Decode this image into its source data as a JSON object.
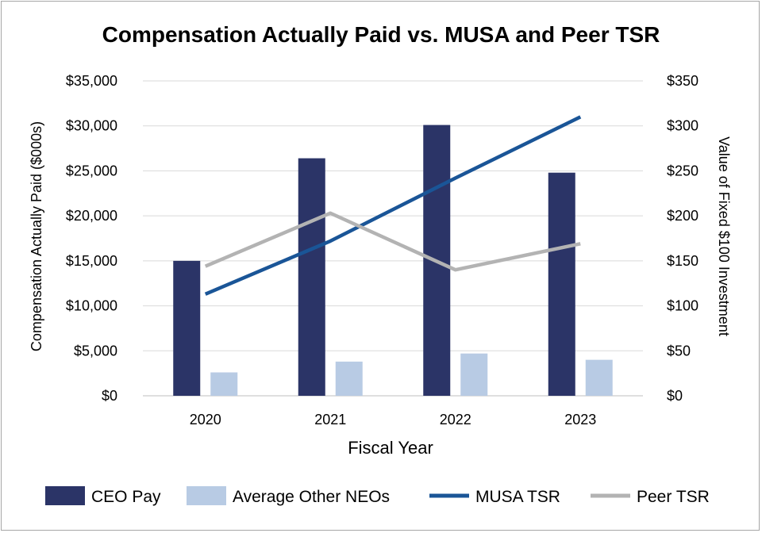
{
  "chart_data": {
    "type": "bar",
    "title": "Compensation Actually Paid vs. MUSA and Peer TSR",
    "xlabel": "Fiscal Year",
    "ylabel": "Compensation Actually Paid ($000s)",
    "y2label": "Value of Fixed $100 Investment",
    "categories": [
      "2020",
      "2021",
      "2022",
      "2023"
    ],
    "ylim": [
      0,
      35000
    ],
    "y2lim": [
      0,
      350
    ],
    "yticks": [
      "$0",
      "$5,000",
      "$10,000",
      "$15,000",
      "$20,000",
      "$25,000",
      "$30,000",
      "$35,000"
    ],
    "y2ticks": [
      "$0",
      "$50",
      "$100",
      "$150",
      "$200",
      "$250",
      "$300",
      "$350"
    ],
    "grid": true,
    "legend_position": "bottom",
    "series": [
      {
        "name": "CEO Pay",
        "type": "bar",
        "axis": "left",
        "color": "#2b3467",
        "values": [
          15000,
          26400,
          30100,
          24800
        ]
      },
      {
        "name": "Average Other NEOs",
        "type": "bar",
        "axis": "left",
        "color": "#b8cbe4",
        "values": [
          2600,
          3800,
          4700,
          4000
        ]
      },
      {
        "name": "MUSA TSR",
        "type": "line",
        "axis": "right",
        "color": "#1a5597",
        "values": [
          113,
          172,
          242,
          310
        ]
      },
      {
        "name": "Peer TSR",
        "type": "line",
        "axis": "right",
        "color": "#b3b3b3",
        "values": [
          144,
          203,
          140,
          169
        ]
      }
    ]
  }
}
